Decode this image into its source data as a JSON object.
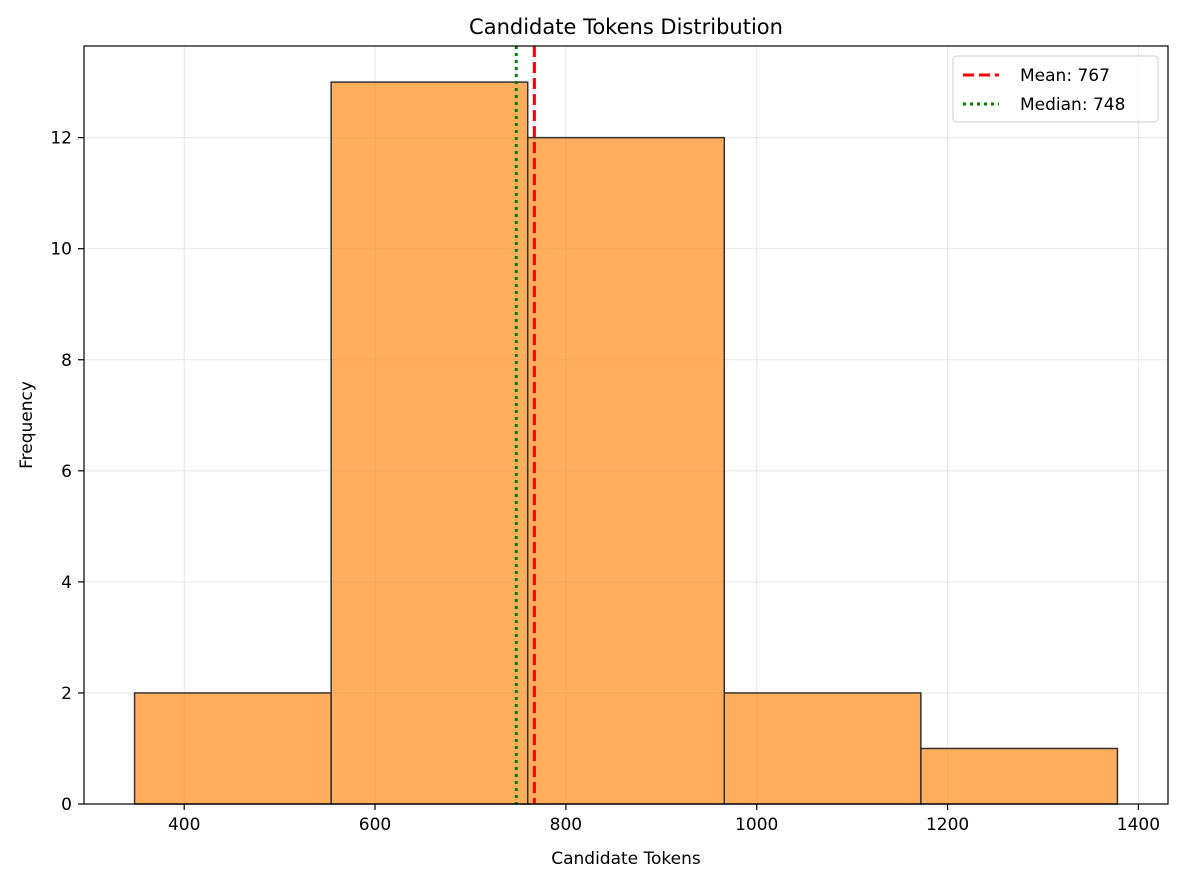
{
  "chart_data": {
    "type": "histogram",
    "title": "Candidate Tokens Distribution",
    "xlabel": "Candidate Tokens",
    "ylabel": "Frequency",
    "xlim": [
      295,
      1431
    ],
    "ylim": [
      0,
      13.65
    ],
    "xticks": [
      400,
      600,
      800,
      1000,
      1200,
      1400
    ],
    "yticks": [
      0,
      2,
      4,
      6,
      8,
      10,
      12
    ],
    "grid": true,
    "bins": [
      {
        "start": 348,
        "end": 554,
        "count": 2
      },
      {
        "start": 554,
        "end": 760,
        "count": 13
      },
      {
        "start": 760,
        "end": 966,
        "count": 12
      },
      {
        "start": 966,
        "end": 1172,
        "count": 2
      },
      {
        "start": 1172,
        "end": 1378,
        "count": 1
      }
    ],
    "bar_color": "#ff8c1a",
    "bar_edge_color": "#333333",
    "reference_lines": [
      {
        "label": "Mean: 767",
        "value": 767,
        "color": "#ff0000",
        "style": "dashed"
      },
      {
        "label": "Median: 748",
        "value": 748,
        "color": "#008000",
        "style": "dotted"
      }
    ],
    "legend_position": "top-right"
  }
}
